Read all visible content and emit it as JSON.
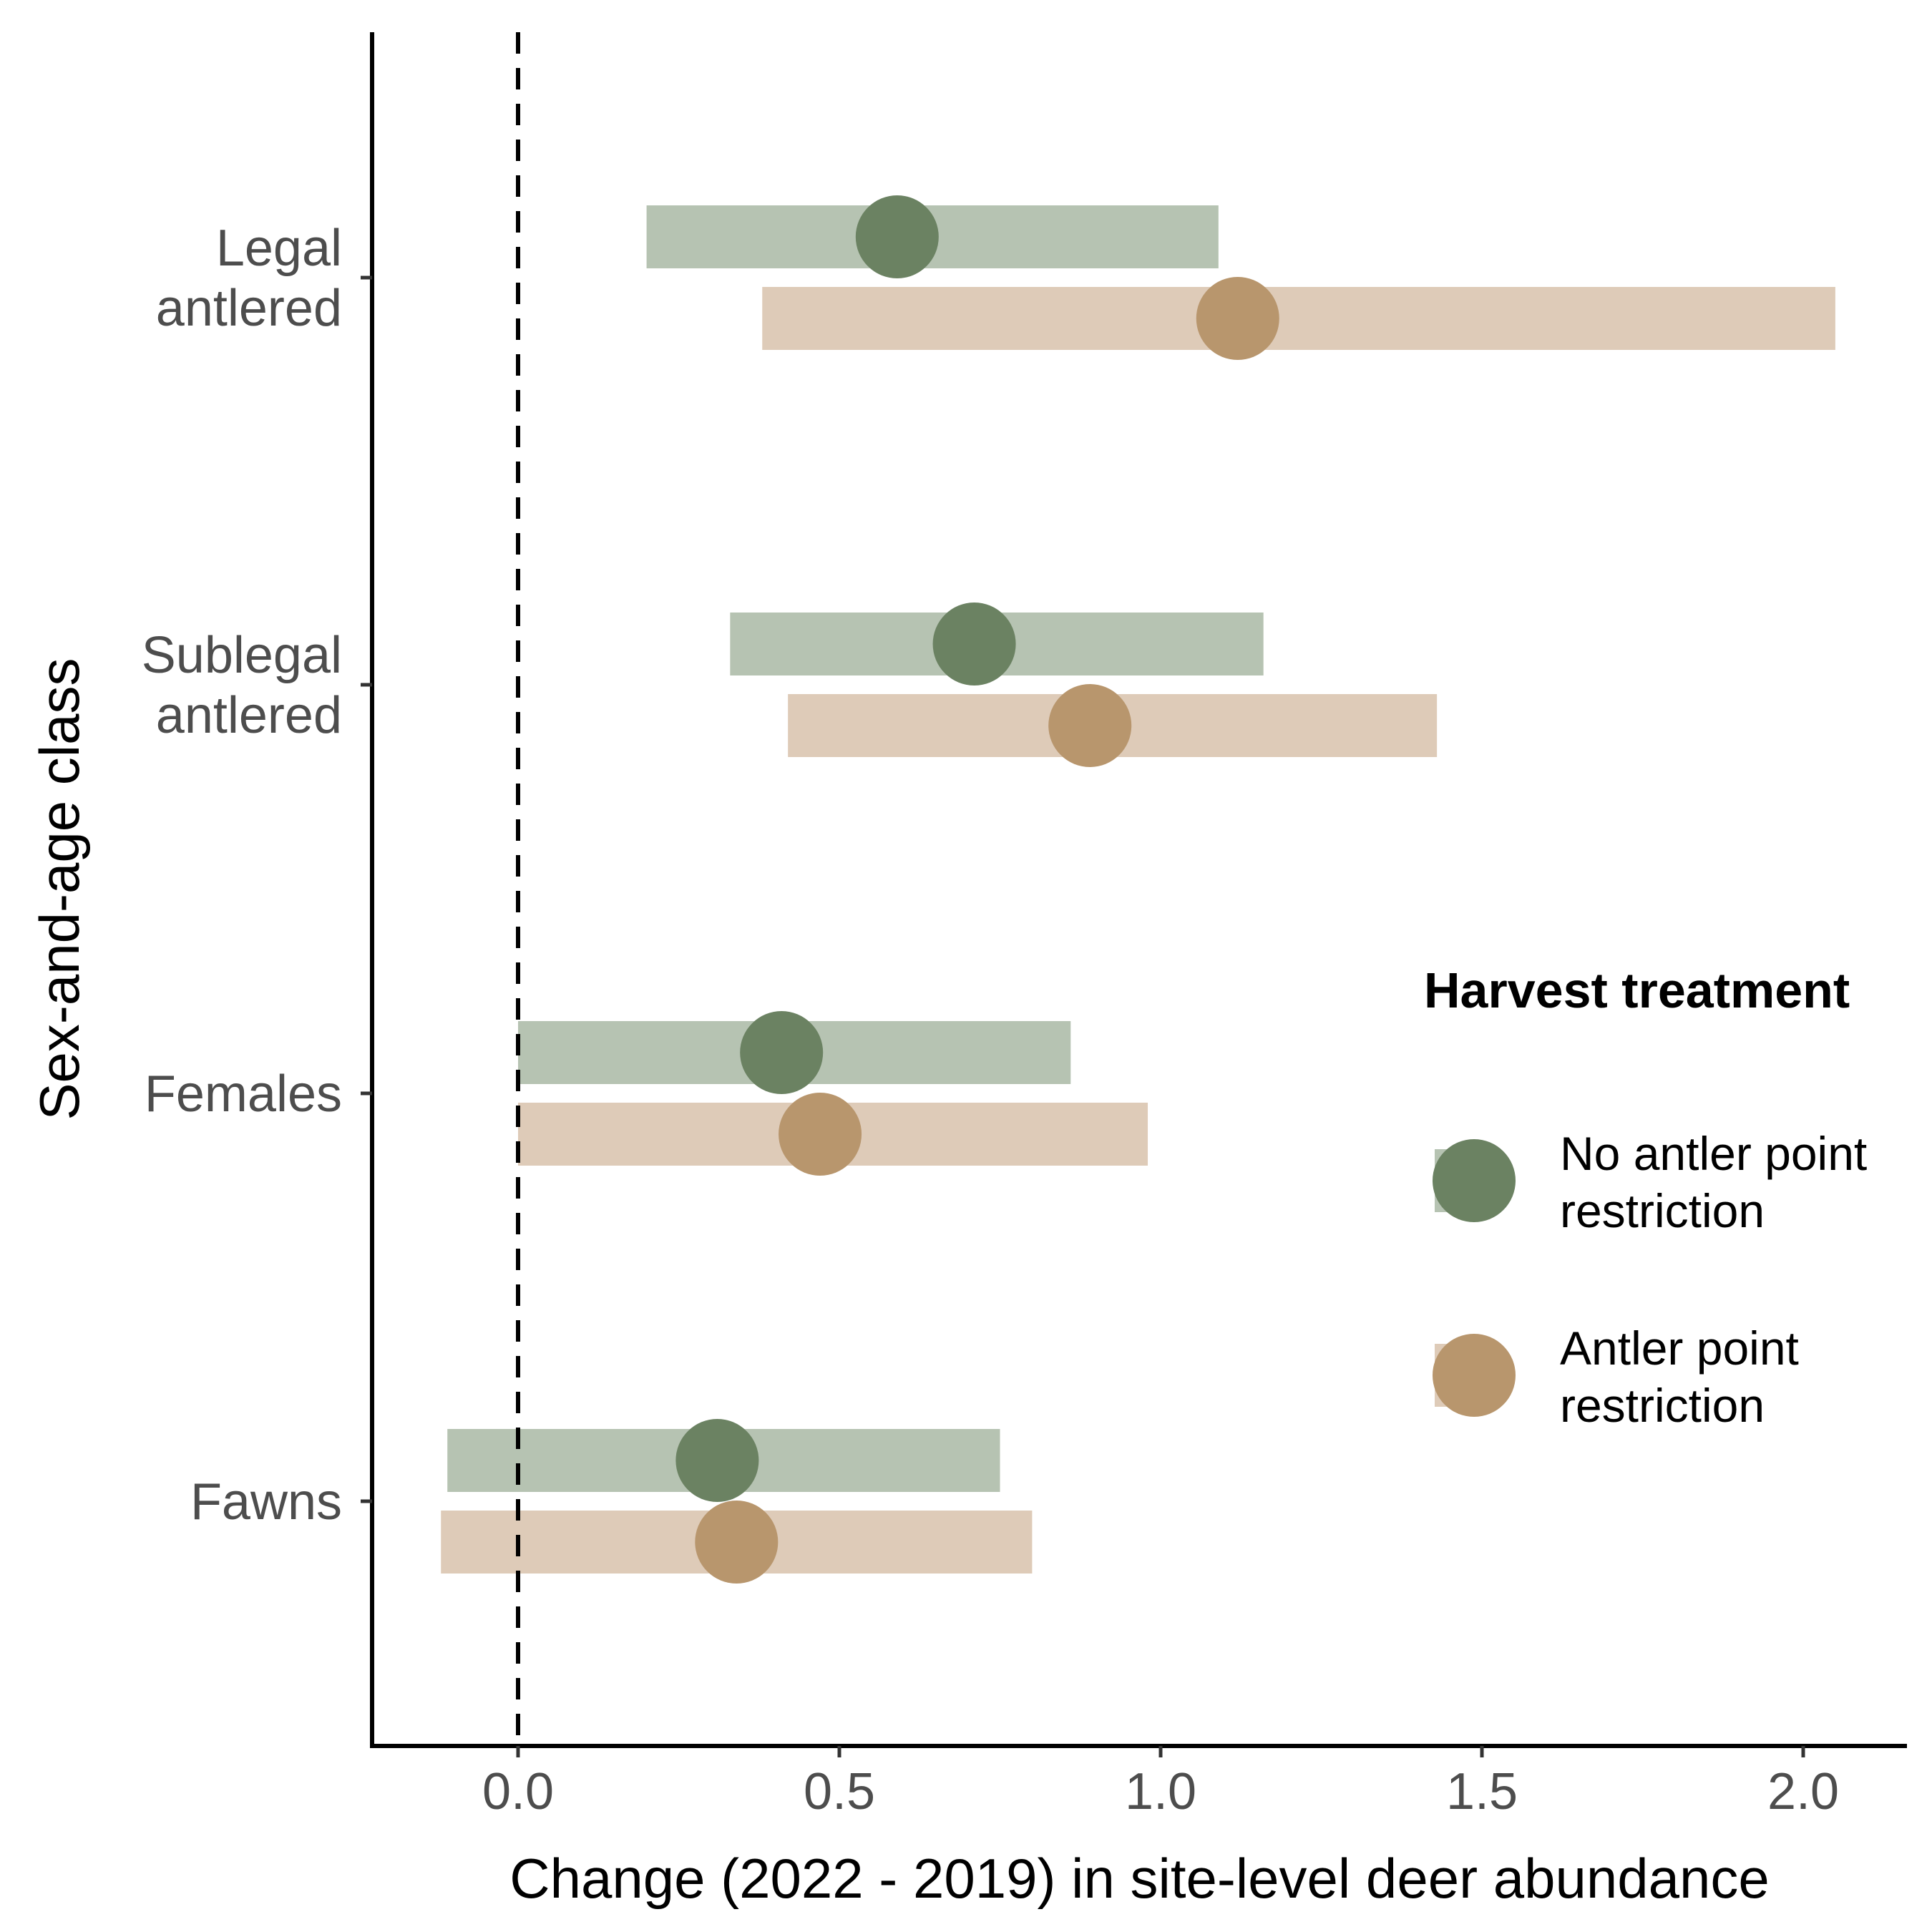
{
  "chart_data": {
    "type": "dot-interval",
    "xlabel": "Change (2022 - 2019) in site-level deer abundance",
    "ylabel": "Sex-and-age class",
    "xlim": [
      -0.23,
      2.17
    ],
    "xticks": [
      0.0,
      0.5,
      1.0,
      1.5,
      2.0
    ],
    "xtick_labels": [
      "0.0",
      "0.5",
      "1.0",
      "1.5",
      "2.0"
    ],
    "reference_line": {
      "x": 0,
      "style": "dashed"
    },
    "categories": [
      {
        "key": "legal",
        "lines": [
          "Legal",
          "antlered"
        ]
      },
      {
        "key": "sublegal",
        "lines": [
          "Sublegal",
          "antlered"
        ]
      },
      {
        "key": "females",
        "lines": [
          "Females"
        ]
      },
      {
        "key": "fawns",
        "lines": [
          "Fawns"
        ]
      }
    ],
    "series": [
      {
        "name": "No antler point restriction",
        "legend_lines": [
          "No antler point",
          "restriction"
        ],
        "point_color": "#6b8262",
        "interval_color": "#b6c3b2",
        "estimates": [
          0.59,
          0.71,
          0.41,
          0.31
        ],
        "lower": [
          0.2,
          0.33,
          0.0,
          -0.11
        ],
        "upper": [
          1.09,
          1.16,
          0.86,
          0.75
        ]
      },
      {
        "name": "Antler point restriction",
        "legend_lines": [
          "Antler point",
          "restriction"
        ],
        "point_color": "#b8966d",
        "interval_color": "#decbb8",
        "estimates": [
          1.12,
          0.89,
          0.47,
          0.34
        ],
        "lower": [
          0.38,
          0.42,
          0.0,
          -0.12
        ],
        "upper": [
          2.05,
          1.43,
          0.98,
          0.8
        ]
      }
    ],
    "legend": {
      "title": "Harvest treatment",
      "position": "right"
    }
  }
}
